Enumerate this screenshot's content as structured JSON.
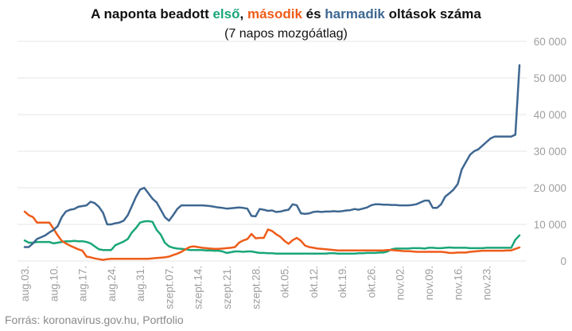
{
  "title": {
    "part1": "A naponta beadott ",
    "first": "első",
    "sep1": ", ",
    "second": "második",
    "sep2": " és ",
    "third": "harmadik",
    "part2": " oltások száma"
  },
  "subtitle": "(7 napos mozgóátlag)",
  "source": "Forrás: koronavirus.gov.hu, Portfolio",
  "colors": {
    "first": "#1aa67a",
    "second": "#ee5c1a",
    "third": "#3e6791",
    "axis_text": "#9e9e9e",
    "grid": "#e6e6e6"
  },
  "chart_data": {
    "type": "line",
    "title": "A naponta beadott első, második és harmadik oltások száma",
    "subtitle": "(7 napos mozgóátlag)",
    "x_tick_labels": [
      "aug.03.",
      "aug.10.",
      "aug.17.",
      "aug.24.",
      "aug.31.",
      "szept.07.",
      "szept.14.",
      "szept.21.",
      "szept.28.",
      "okt.05.",
      "okt.12.",
      "okt.19.",
      "okt.26.",
      "nov.02.",
      "nov.09.",
      "nov.16.",
      "nov.23."
    ],
    "y_axis_position": "right",
    "y_ticks": [
      0,
      10000,
      20000,
      30000,
      40000,
      50000,
      60000
    ],
    "y_tick_labels": [
      "0",
      "10 000",
      "20 000",
      "30 000",
      "40 000",
      "50 000",
      "60 000"
    ],
    "ylim": [
      0,
      60000
    ],
    "grid": true,
    "x_day_range": [
      "aug.03.",
      "nov.24."
    ],
    "series": [
      {
        "name": "első",
        "color": "#1aa67a",
        "values": [
          5600,
          5000,
          5000,
          5200,
          5200,
          5200,
          5200,
          4800,
          5000,
          5200,
          5400,
          5400,
          5500,
          5400,
          5400,
          5200,
          4800,
          4000,
          3200,
          3000,
          3000,
          3000,
          4300,
          4800,
          5300,
          6000,
          7800,
          9000,
          10500,
          10800,
          10900,
          10700,
          8500,
          7200,
          5000,
          4000,
          3600,
          3400,
          3300,
          3200,
          3000,
          3000,
          3000,
          3000,
          2900,
          2900,
          2800,
          2800,
          2600,
          2200,
          2400,
          2600,
          2600,
          2500,
          2600,
          2600,
          2400,
          2200,
          2200,
          2100,
          2100,
          2000,
          2000,
          2000,
          2000,
          2000,
          2000,
          2000,
          2000,
          2000,
          2000,
          2000,
          2000,
          2000,
          2100,
          2100,
          2000,
          2000,
          2000,
          2000,
          2000,
          2100,
          2100,
          2200,
          2200,
          2200,
          2300,
          2300,
          2600,
          3200,
          3400,
          3400,
          3400,
          3400,
          3500,
          3500,
          3500,
          3400,
          3600,
          3600,
          3500,
          3500,
          3600,
          3700,
          3600,
          3600,
          3600,
          3600,
          3500,
          3500,
          3500,
          3500,
          3600,
          3600,
          3600,
          3600,
          3600,
          3600,
          3600,
          5800,
          7000
        ]
      },
      {
        "name": "második",
        "color": "#ee5c1a",
        "values": [
          13500,
          12500,
          12000,
          10500,
          10500,
          10500,
          10500,
          8800,
          7000,
          5500,
          4800,
          4200,
          3700,
          3200,
          2800,
          1200,
          1000,
          700,
          500,
          300,
          500,
          600,
          600,
          600,
          600,
          600,
          600,
          600,
          600,
          600,
          600,
          700,
          800,
          900,
          1000,
          1200,
          1600,
          2000,
          2500,
          3200,
          3800,
          4000,
          3800,
          3600,
          3500,
          3400,
          3300,
          3300,
          3400,
          3500,
          3600,
          3800,
          5000,
          5600,
          6000,
          7400,
          6200,
          6300,
          6300,
          8600,
          8200,
          7300,
          6600,
          5500,
          4700,
          5700,
          6300,
          5500,
          4200,
          3800,
          3600,
          3400,
          3300,
          3200,
          3100,
          3000,
          2900,
          2900,
          2900,
          2900,
          2900,
          2900,
          2900,
          2900,
          2900,
          2900,
          2900,
          2900,
          3000,
          3000,
          2900,
          2800,
          2700,
          2700,
          2600,
          2500,
          2500,
          2500,
          2500,
          2500,
          2500,
          2500,
          2400,
          2200,
          2200,
          2300,
          2300,
          2300,
          2500,
          2600,
          2700,
          2800,
          2800,
          2800,
          2800,
          2800,
          2800,
          2900,
          2900,
          3300,
          3700
        ]
      },
      {
        "name": "harmadik",
        "color": "#3e6791",
        "values": [
          3800,
          3800,
          4800,
          6000,
          6500,
          7000,
          7800,
          8500,
          9500,
          12000,
          13500,
          14000,
          14200,
          14800,
          15000,
          15200,
          16200,
          15800,
          14800,
          13200,
          10000,
          10000,
          10300,
          10500,
          11000,
          12500,
          15000,
          17500,
          19500,
          20000,
          18500,
          17000,
          16000,
          14000,
          12000,
          11000,
          12500,
          14200,
          15200,
          15200,
          15200,
          15200,
          15200,
          15200,
          15100,
          15000,
          14800,
          14600,
          14500,
          14300,
          14400,
          14500,
          14600,
          14500,
          14300,
          12300,
          12200,
          14200,
          14000,
          13700,
          13800,
          13400,
          13500,
          13800,
          14000,
          15500,
          15200,
          13000,
          12900,
          13000,
          13400,
          13500,
          13400,
          13500,
          13500,
          13600,
          13500,
          13600,
          13800,
          13900,
          14200,
          14000,
          14300,
          14600,
          15200,
          15500,
          15500,
          15400,
          15400,
          15300,
          15300,
          15200,
          15200,
          15200,
          15300,
          15500,
          16000,
          16500,
          16500,
          14500,
          14500,
          15500,
          17600,
          18500,
          19500,
          21000,
          25000,
          27000,
          29000,
          30000,
          30500,
          31500,
          32500,
          33500,
          34000,
          34000,
          34000,
          34000,
          34000,
          34500,
          53500
        ]
      }
    ]
  }
}
